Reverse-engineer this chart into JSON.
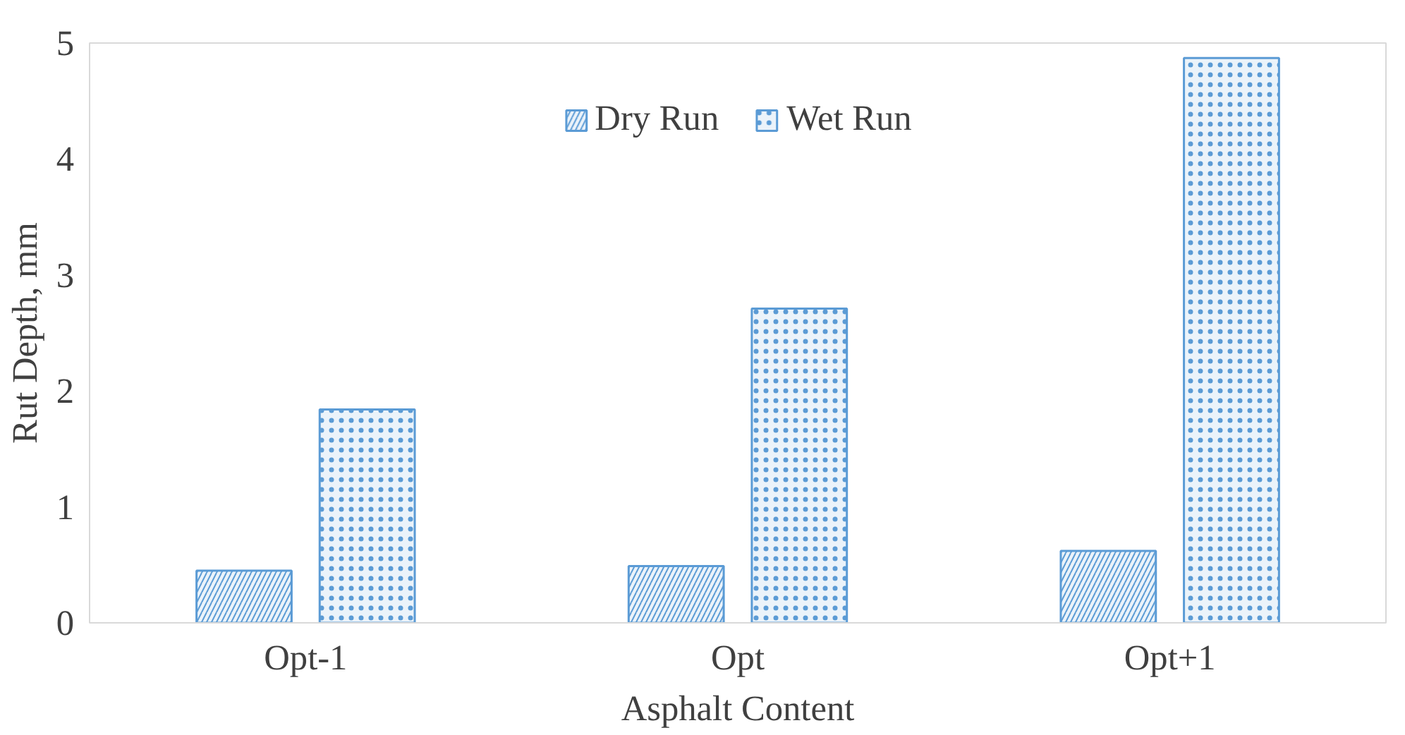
{
  "chart_data": {
    "type": "bar",
    "xlabel": "Asphalt Content",
    "ylabel": "Rut Depth, mm",
    "categories": [
      "Opt-1",
      "Opt",
      "Opt+1"
    ],
    "series": [
      {
        "name": "Dry Run",
        "color": "#5b9bd5",
        "values": [
          0.45,
          0.49,
          0.62
        ]
      },
      {
        "name": "Wet Run",
        "color": "#5b9bd5",
        "values": [
          1.84,
          2.71,
          4.87
        ]
      }
    ],
    "ylim": [
      0,
      5
    ],
    "yticks": [
      0,
      1,
      2,
      3,
      4,
      5
    ],
    "grid": false,
    "legend": "top"
  }
}
